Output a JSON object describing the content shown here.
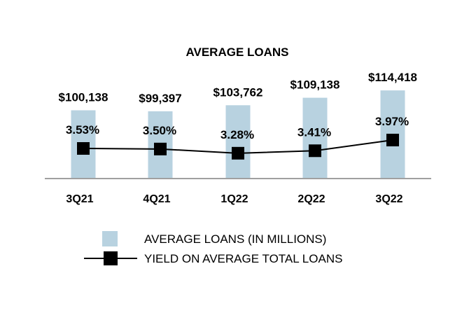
{
  "chart_data": {
    "type": "bar",
    "title": "AVERAGE LOANS",
    "categories": [
      "3Q21",
      "4Q21",
      "1Q22",
      "2Q22",
      "3Q22"
    ],
    "series": [
      {
        "name": "AVERAGE LOANS (IN MILLIONS)",
        "type": "bar",
        "values": [
          100138,
          99397,
          103762,
          109138,
          114418
        ],
        "labels": [
          "$100,138",
          "$99,397",
          "$103,762",
          "$109,138",
          "$114,418"
        ],
        "color": "#b8d2e0"
      },
      {
        "name": "YIELD ON AVERAGE TOTAL LOANS",
        "type": "line",
        "values": [
          3.53,
          3.5,
          3.28,
          3.41,
          3.97
        ],
        "labels": [
          "3.53%",
          "3.50%",
          "3.28%",
          "3.41%",
          "3.97%"
        ],
        "color": "#000000"
      }
    ],
    "ylim_bars": [
      51600,
      120000
    ],
    "grid": false,
    "legend_placement": "bottom"
  }
}
